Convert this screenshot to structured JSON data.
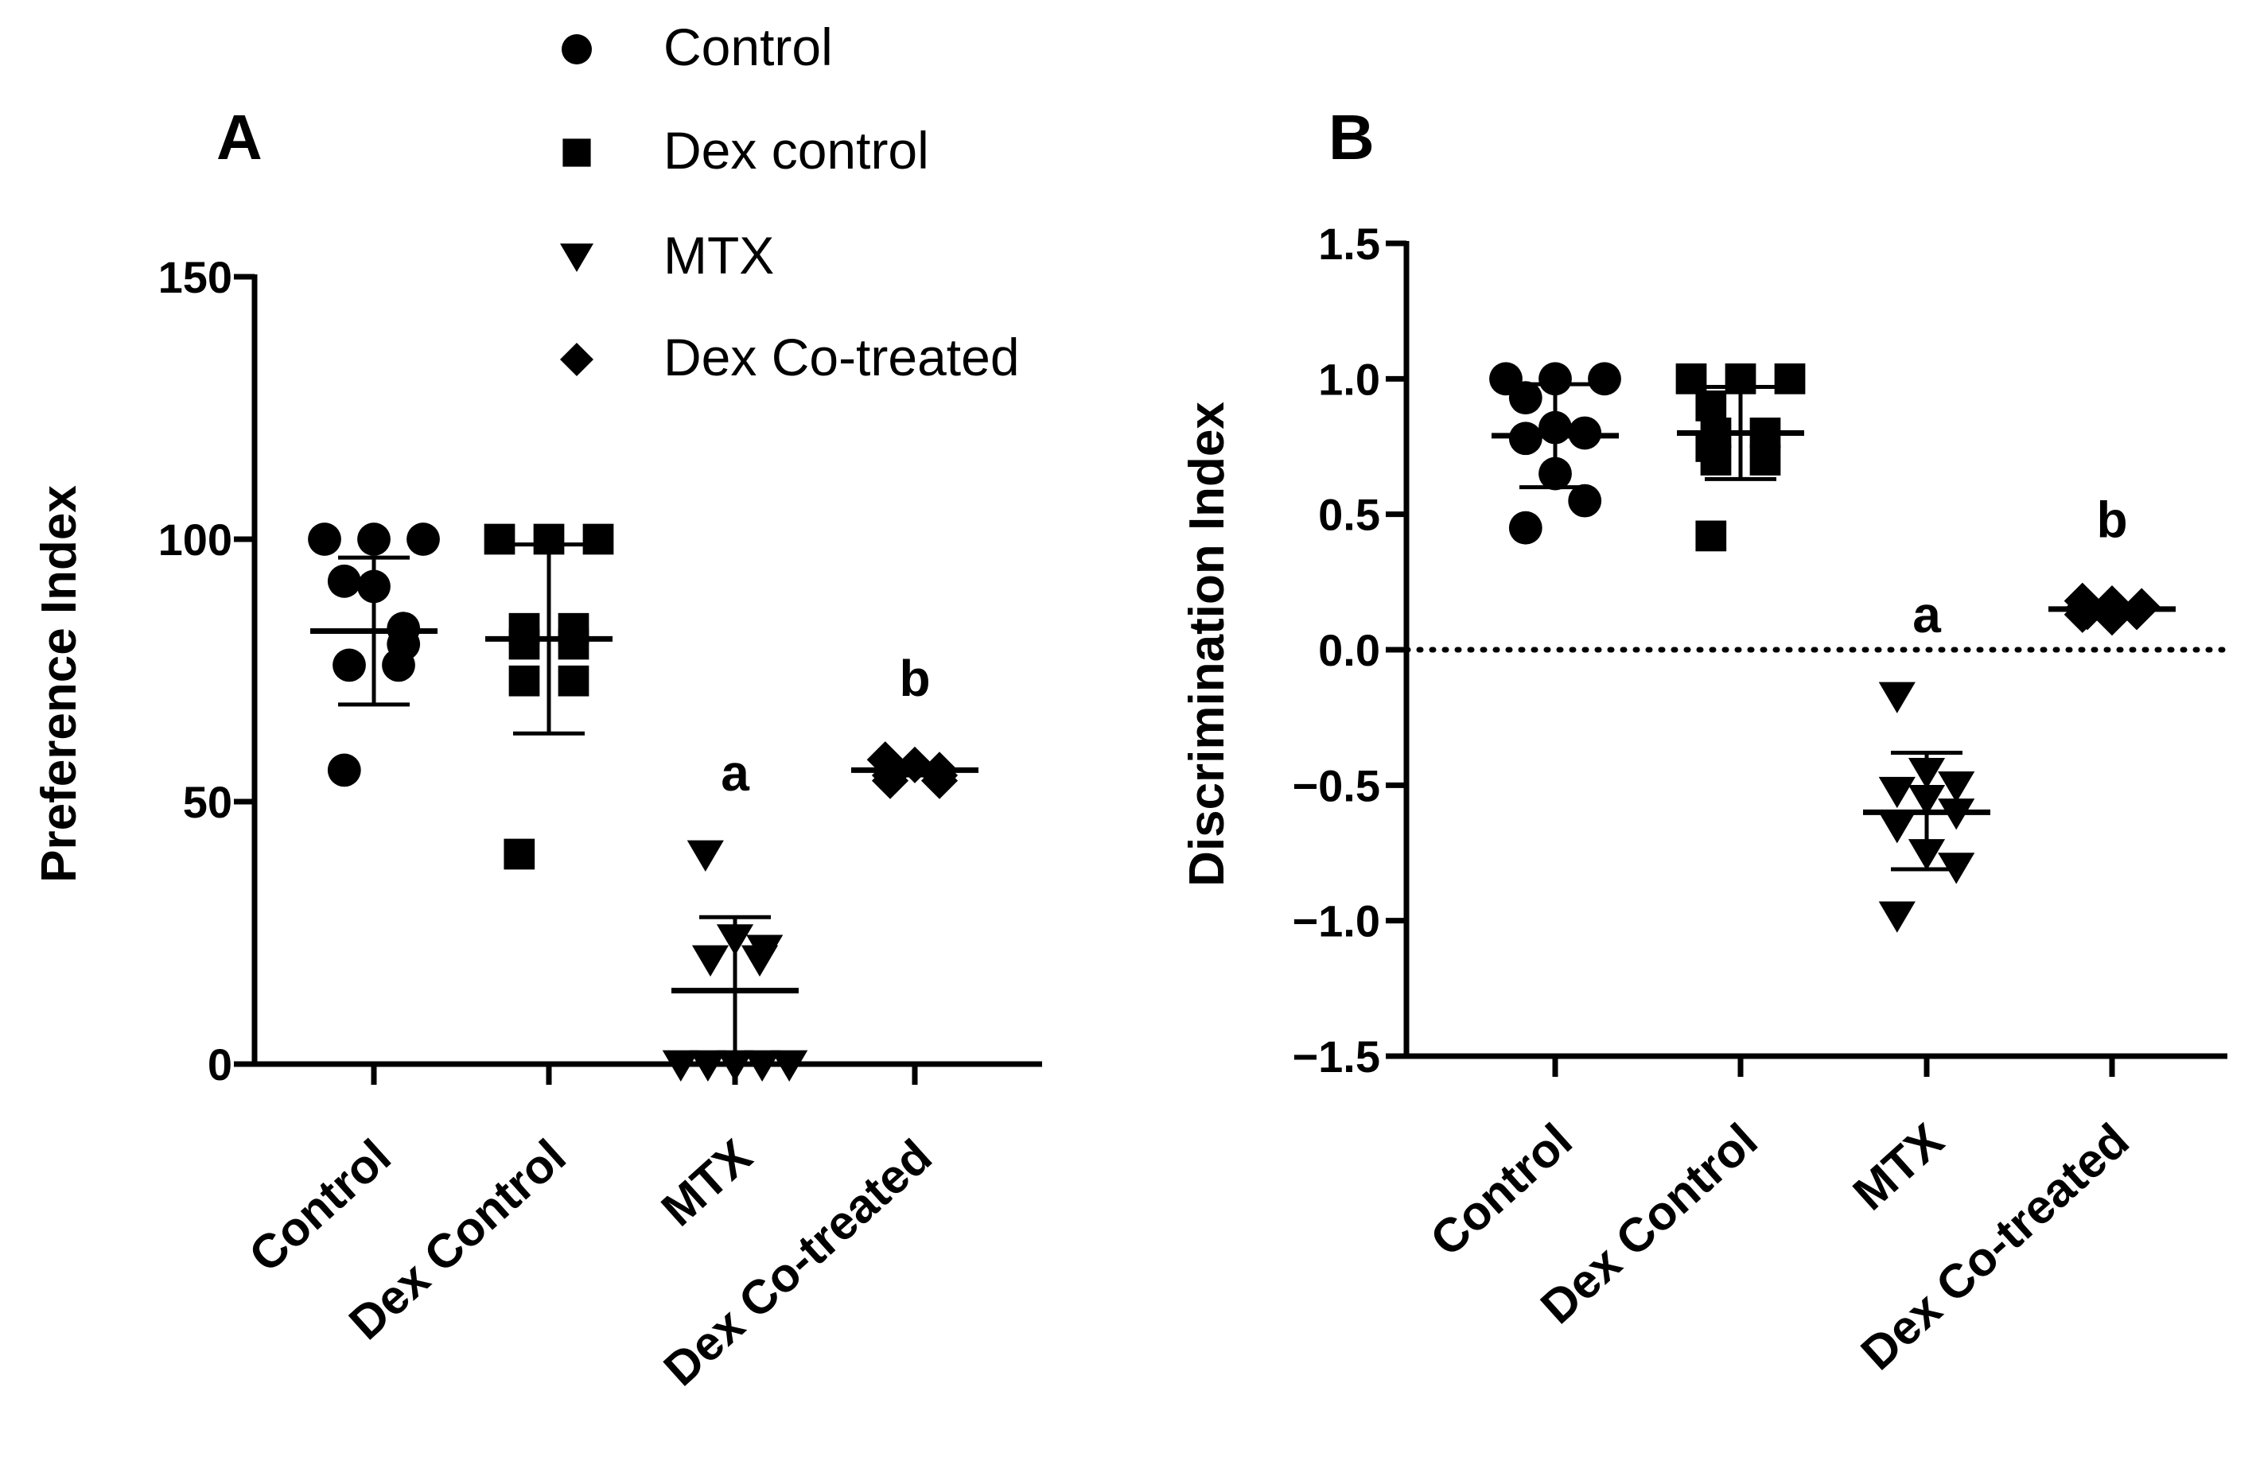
{
  "legend": [
    {
      "label": "Control",
      "marker": "circle"
    },
    {
      "label": "Dex control",
      "marker": "square"
    },
    {
      "label": "MTX",
      "marker": "triangle-down"
    },
    {
      "label": "Dex Co-treated",
      "marker": "diamond"
    }
  ],
  "chart_data": [
    {
      "type": "scatter",
      "panel": "A",
      "ylabel": "Preference Index",
      "ylim": [
        0,
        150
      ],
      "yticks": [
        0,
        50,
        100,
        150
      ],
      "ytick_labels": [
        "0",
        "50",
        "100",
        "150"
      ],
      "categories": [
        "Control",
        "Dex Control",
        "MTX",
        "Dex Co-treated"
      ],
      "groups": [
        {
          "name": "Control",
          "marker": "circle",
          "points": [
            100,
            100,
            100,
            92,
            91,
            83,
            76,
            76,
            80,
            56
          ],
          "mean": 82.5,
          "sd_low": 68.5,
          "sd_high": 96.5,
          "annotation": ""
        },
        {
          "name": "Dex Control",
          "marker": "square",
          "points": [
            100,
            100,
            100,
            83,
            83,
            80,
            80,
            73,
            73,
            40
          ],
          "mean": 81,
          "sd_low": 63,
          "sd_high": 99,
          "annotation": ""
        },
        {
          "name": "MTX",
          "marker": "triangle-down",
          "points": [
            40,
            24,
            22,
            20,
            20,
            0,
            0,
            0,
            0,
            0
          ],
          "mean": 14,
          "sd_low": 0,
          "sd_high": 28,
          "annotation": "a"
        },
        {
          "name": "Dex Co-treated",
          "marker": "diamond",
          "points": [
            58,
            57,
            56,
            56,
            55,
            55,
            54,
            54
          ],
          "mean": 56,
          "sd_low": 55,
          "sd_high": 57,
          "annotation": "b"
        }
      ]
    },
    {
      "type": "scatter",
      "panel": "B",
      "ylabel": "Discrimination Index",
      "ylim": [
        -1.5,
        1.5
      ],
      "yticks": [
        -1.5,
        -1.0,
        -0.5,
        0.0,
        0.5,
        1.0,
        1.5
      ],
      "ytick_labels": [
        "−1.5",
        "−1.0",
        "−0.5",
        "0.0",
        "0.5",
        "1.0",
        "1.5"
      ],
      "reference_line": 0.0,
      "categories": [
        "Control",
        "Dex Control",
        "MTX",
        "Dex Co-treated"
      ],
      "groups": [
        {
          "name": "Control",
          "marker": "circle",
          "points": [
            1.0,
            1.0,
            1.0,
            0.93,
            0.82,
            0.8,
            0.78,
            0.65,
            0.55,
            0.45
          ],
          "mean": 0.79,
          "sd_low": 0.6,
          "sd_high": 0.98,
          "annotation": ""
        },
        {
          "name": "Dex Control",
          "marker": "square",
          "points": [
            1.0,
            1.0,
            1.0,
            0.9,
            0.8,
            0.8,
            0.75,
            0.7,
            0.7,
            0.42
          ],
          "mean": 0.8,
          "sd_low": 0.63,
          "sd_high": 0.97,
          "annotation": ""
        },
        {
          "name": "MTX",
          "marker": "triangle-down",
          "points": [
            -0.17,
            -0.45,
            -0.5,
            -0.52,
            -0.55,
            -0.6,
            -0.65,
            -0.75,
            -0.8,
            -0.98
          ],
          "mean": -0.6,
          "sd_low": -0.81,
          "sd_high": -0.38,
          "annotation": "a"
        },
        {
          "name": "Dex Co-treated",
          "marker": "diamond",
          "points": [
            0.18,
            0.17,
            0.16,
            0.15,
            0.14,
            0.14,
            0.13,
            0.12
          ],
          "mean": 0.15,
          "sd_low": 0.13,
          "sd_high": 0.17,
          "annotation": "b"
        }
      ]
    }
  ]
}
